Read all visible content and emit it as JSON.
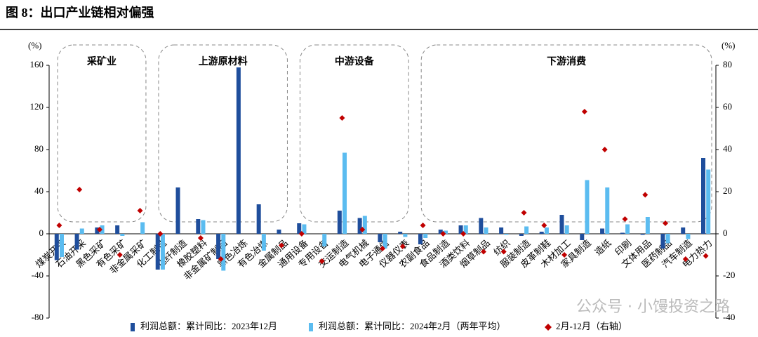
{
  "chart_data": {
    "type": "bar",
    "title": "图 8：出口产业链相对偏强",
    "y_unit": "(%)",
    "y2_unit": "(%)",
    "groups": [
      "采矿业",
      "上游原材料",
      "中游设备",
      "下游消费"
    ],
    "watermark": "公众号 · 小馒投资之路",
    "categories": [
      "煤炭开采",
      "石油开采",
      "黑色采矿",
      "有色采矿",
      "非金属采矿",
      "化工制造",
      "化纤制造",
      "橡胶塑料",
      "非金属矿制品",
      "黑色冶炼",
      "有色冶炼",
      "金属制品",
      "通用设备",
      "专用设备",
      "交运制造",
      "电气机械",
      "电子通信",
      "仪器仪表",
      "农副食品",
      "食品制造",
      "酒类饮料",
      "烟草制品",
      "纺织",
      "服装制造",
      "皮革制鞋",
      "木材加工",
      "家具制造",
      "造纸",
      "印刷",
      "文体用品",
      "医药制品",
      "汽车制造",
      "电力热力"
    ],
    "series": [
      {
        "name": "利润总额：累计同比：2023年12月",
        "color": "#1f4e9c",
        "type": "bar",
        "values": [
          -25,
          -15,
          6,
          8,
          0,
          -34,
          44,
          14,
          -24,
          158,
          28,
          4,
          10,
          0,
          22,
          15,
          -8,
          2,
          -10,
          4,
          8,
          15,
          6,
          -2,
          2,
          18,
          -6,
          5,
          1,
          -1,
          -14,
          6,
          72
        ]
      },
      {
        "name": "利润总额：累计同比：2024年2月（两年平均）",
        "color": "#5bbcf0",
        "type": "bar",
        "values": [
          -22,
          5,
          8,
          -2,
          11,
          -34,
          0,
          13,
          -35,
          0,
          -16,
          0,
          9,
          -12,
          77,
          17,
          -14,
          -3,
          -4,
          3,
          8,
          6,
          -1,
          7,
          6,
          8,
          51,
          44,
          9,
          16,
          -9,
          -5,
          61
        ]
      },
      {
        "name": "2月-12月（右轴）",
        "color": "#c00000",
        "type": "scatter",
        "axis": "y2",
        "values": [
          4,
          21,
          2,
          -10,
          11,
          0,
          null,
          -2,
          -12,
          null,
          null,
          -5.5,
          0,
          -13,
          55,
          2,
          -7,
          -6,
          4,
          0,
          0,
          -8.5,
          -8.5,
          10,
          4,
          -10,
          58,
          40,
          7,
          18.5,
          5,
          -12,
          -10.5
        ]
      }
    ],
    "ylim": [
      -80,
      160
    ],
    "yticks": [
      -80,
      -40,
      0,
      40,
      80,
      120,
      160
    ],
    "y2lim": [
      -40,
      80
    ],
    "y2ticks": [
      -40,
      -20,
      0,
      20,
      40,
      60,
      80
    ]
  }
}
